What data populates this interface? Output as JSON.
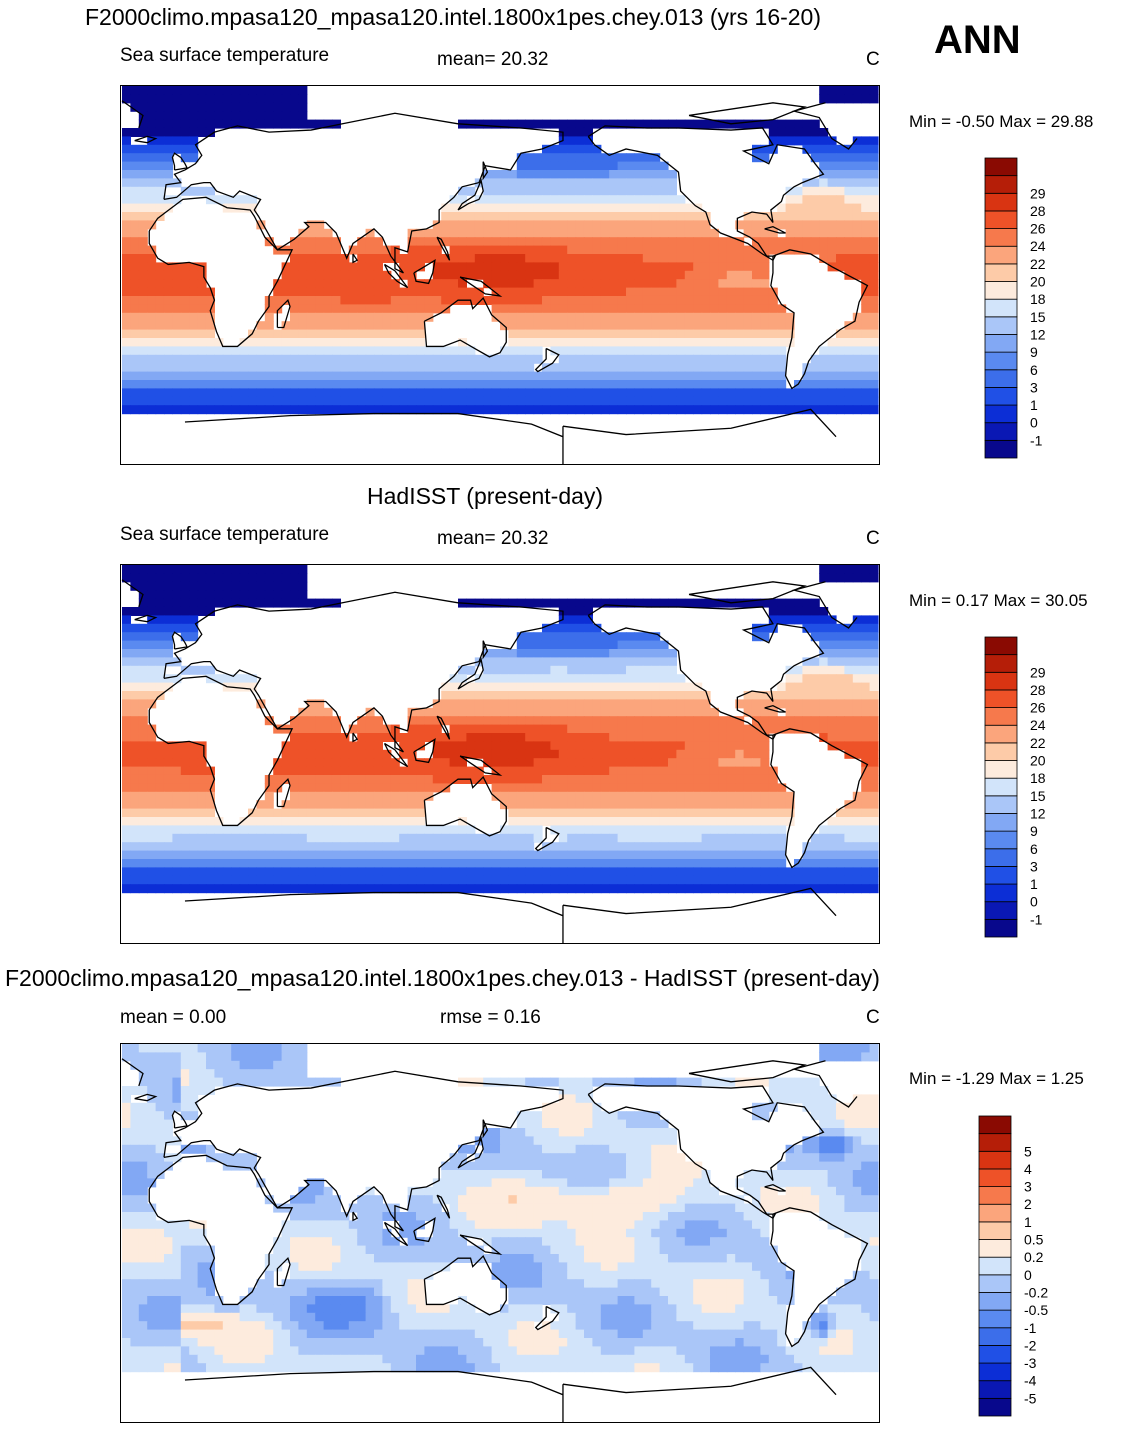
{
  "header": {
    "season": "ANN"
  },
  "colors": {
    "sst": [
      "#08088C",
      "#0A18B4",
      "#0C2ED6",
      "#2050E6",
      "#3C6EEA",
      "#5A8AF0",
      "#82A8F4",
      "#AAC6F8",
      "#D2E4FA",
      "#FDEBDD",
      "#FDCBA8",
      "#FBA57C",
      "#F6794C",
      "#EE5228",
      "#D93412",
      "#B51E08",
      "#8A0A02"
    ],
    "diff": [
      "#08088C",
      "#0A18B4",
      "#0C2ED6",
      "#2050E6",
      "#3C6EEA",
      "#5A8AF0",
      "#82A8F4",
      "#AAC6F8",
      "#D2E4FA",
      "#FDEBDD",
      "#FDCBA8",
      "#FBA57C",
      "#F6794C",
      "#EE5228",
      "#D93412",
      "#B51E08",
      "#8A0A02"
    ]
  },
  "panels": [
    {
      "title": "F2000climo.mpasa120_mpasa120.intel.1800x1pes.chey.013 (yrs 16-20)",
      "left_label": "Sea surface temperature",
      "center_label": "mean=  20.32",
      "units": "C",
      "minmax": "Min =  -0.50 Max =  29.88",
      "levels": [
        "-1",
        "0",
        "1",
        "3",
        "6",
        "9",
        "12",
        "15",
        "18",
        "20",
        "22",
        "24",
        "26",
        "28",
        "29"
      ]
    },
    {
      "title": "HadISST (present-day)",
      "left_label": "Sea surface temperature",
      "center_label": "mean=  20.32",
      "units": "C",
      "minmax": "Min =   0.17 Max =  30.05",
      "levels": [
        "-1",
        "0",
        "1",
        "3",
        "6",
        "9",
        "12",
        "15",
        "18",
        "20",
        "22",
        "24",
        "26",
        "28",
        "29"
      ]
    },
    {
      "title": "F2000climo.mpasa120_mpasa120.intel.1800x1pes.chey.013 - HadISST (present-day)",
      "left_label": "mean =    0.00",
      "center_label": "rmse =    0.16",
      "units": "C",
      "minmax": "Min =  -1.29 Max =    1.25",
      "levels": [
        "-5",
        "-4",
        "-3",
        "-2",
        "-1",
        "-0.5",
        "-0.2",
        "0",
        "0.2",
        "0.5",
        "1",
        "2",
        "3",
        "4",
        "5"
      ]
    }
  ],
  "chart_data": [
    {
      "type": "heatmap",
      "title": "F2000climo.mpasa120_mpasa120.intel.1800x1pes.chey.013 (yrs 16-20)",
      "variable": "Sea surface temperature",
      "units": "C",
      "mean": 20.32,
      "min": -0.5,
      "max": 29.88,
      "contour_levels": [
        -1,
        0,
        1,
        3,
        6,
        9,
        12,
        15,
        18,
        20,
        22,
        24,
        26,
        28,
        29
      ]
    },
    {
      "type": "heatmap",
      "title": "HadISST (present-day)",
      "variable": "Sea surface temperature",
      "units": "C",
      "mean": 20.32,
      "min": 0.17,
      "max": 30.05,
      "contour_levels": [
        -1,
        0,
        1,
        3,
        6,
        9,
        12,
        15,
        18,
        20,
        22,
        24,
        26,
        28,
        29
      ]
    },
    {
      "type": "heatmap",
      "title": "F2000climo.mpasa120_mpasa120.intel.1800x1pes.chey.013 - HadISST (present-day)",
      "units": "C",
      "mean": 0.0,
      "rmse": 0.16,
      "min": -1.29,
      "max": 1.25,
      "contour_levels": [
        -5,
        -4,
        -3,
        -2,
        -1,
        -0.5,
        -0.2,
        0,
        0.2,
        0.5,
        1,
        2,
        3,
        4,
        5
      ]
    }
  ]
}
